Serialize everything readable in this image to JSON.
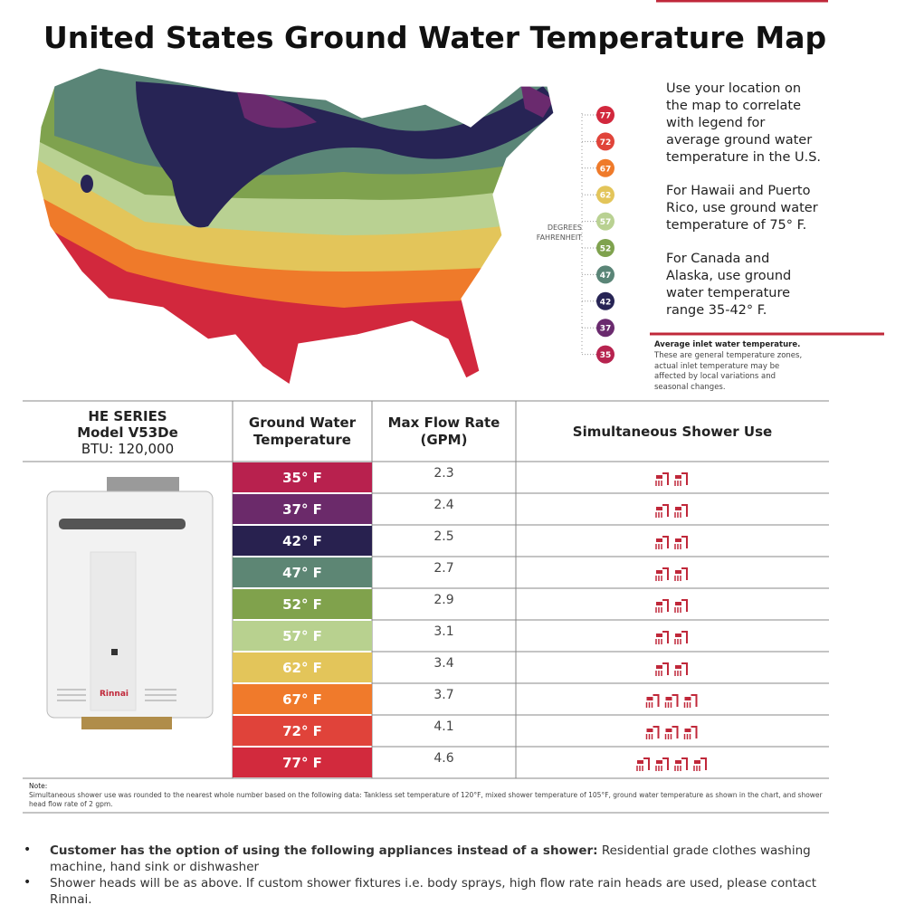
{
  "title": "United States Ground Water Temperature Map",
  "intro": [
    [
      "Use your location on",
      "the map to correlate",
      "with legend for",
      "average ground water",
      "temperature in the U.S."
    ],
    [
      "For Hawaii and Puerto",
      "Rico, use ground water",
      "temperature of 75° F."
    ],
    [
      "For Canada and",
      "Alaska, use ground",
      "water temperature",
      "range 35-42° F."
    ]
  ],
  "legend": {
    "label_lines": [
      "DEGREES",
      "FAHRENHEIT"
    ],
    "items": [
      {
        "label": "77",
        "color": "#d2283d"
      },
      {
        "label": "72",
        "color": "#e0443a"
      },
      {
        "label": "67",
        "color": "#ef7a2a"
      },
      {
        "label": "62",
        "color": "#e3c55a"
      },
      {
        "label": "57",
        "color": "#b9d192"
      },
      {
        "label": "52",
        "color": "#7fa24e"
      },
      {
        "label": "47",
        "color": "#5a8577"
      },
      {
        "label": "42",
        "color": "#272455"
      },
      {
        "label": "37",
        "color": "#6a2a6e"
      },
      {
        "label": "35",
        "color": "#b7234f"
      }
    ]
  },
  "disclaimer": {
    "title": "Average inlet water temperature.",
    "lines": [
      "These are general temperature zones,",
      "actual inlet temperature may be",
      "affected by local variations and",
      "seasonal changes."
    ]
  },
  "table": {
    "model": [
      "HE SERIES",
      "Model V53De",
      "BTU: 120,000"
    ],
    "headers": [
      [
        "Ground Water",
        "Temperature"
      ],
      [
        "Max Flow Rate",
        "(GPM)"
      ],
      [
        "Simultaneous Shower Use"
      ]
    ],
    "brand": "Rinnai",
    "rows": [
      {
        "temperature": "35° F",
        "color": "#b8214e",
        "flow_rate": 2.3,
        "showers": 2
      },
      {
        "temperature": "37° F",
        "color": "#6b2a6a",
        "flow_rate": 2.4,
        "showers": 2
      },
      {
        "temperature": "42° F",
        "color": "#28214f",
        "flow_rate": 2.5,
        "showers": 2
      },
      {
        "temperature": "47° F",
        "color": "#5d8674",
        "flow_rate": 2.7,
        "showers": 2
      },
      {
        "temperature": "52° F",
        "color": "#80a24c",
        "flow_rate": 2.9,
        "showers": 2
      },
      {
        "temperature": "57° F",
        "color": "#b8d18f",
        "flow_rate": 3.1,
        "showers": 2
      },
      {
        "temperature": "62° F",
        "color": "#e3c55a",
        "flow_rate": 3.4,
        "showers": 2
      },
      {
        "temperature": "67° F",
        "color": "#f07a2b",
        "flow_rate": 3.7,
        "showers": 3
      },
      {
        "temperature": "72° F",
        "color": "#e0433a",
        "flow_rate": 4.1,
        "showers": 3
      },
      {
        "temperature": "77° F",
        "color": "#d22a3d",
        "flow_rate": 4.6,
        "showers": 4
      }
    ]
  },
  "note": {
    "title": "Note:",
    "text": "Simultaneous shower use was rounded to the nearest whole number based on the following data: Tankless set temperature of 120°F, mixed shower temperature of 105°F, ground water temperature as shown in the chart, and shower head flow rate of 2 gpm."
  },
  "bullets": [
    {
      "bold": "Customer has the option of using the following appliances instead of a shower:",
      "text": " Residential grade clothes washing machine, hand sink or dishwasher"
    },
    {
      "bold": "",
      "text": "Shower heads will be as above. If custom shower fixtures  i.e. body sprays, high flow rate rain heads are used, please contact Rinnai."
    }
  ]
}
